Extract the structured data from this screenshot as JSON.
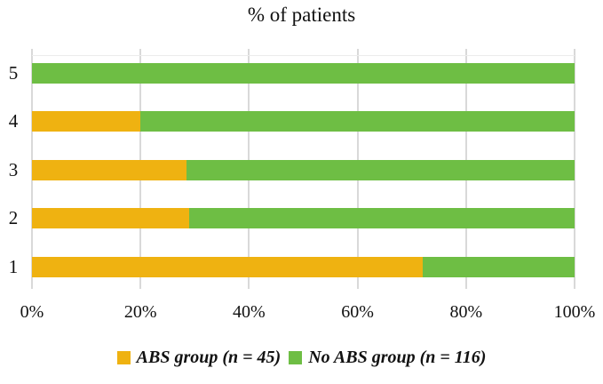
{
  "title": "% of patients",
  "chart_data": {
    "type": "bar",
    "orientation": "horizontal",
    "stacked": true,
    "title": "% of patients",
    "xlabel": "",
    "ylabel": "",
    "categories": [
      "5",
      "4",
      "3",
      "2",
      "1"
    ],
    "series": [
      {
        "name": "ABS group (n = 45)",
        "color": "#EFB211",
        "values": [
          0,
          20,
          28.5,
          29,
          72
        ]
      },
      {
        "name": "No ABS group (n = 116)",
        "color": "#6EBE44",
        "values": [
          100,
          80,
          71.5,
          71,
          28
        ]
      }
    ],
    "x_tick_labels": [
      "0%",
      "20%",
      "40%",
      "60%",
      "80%",
      "100%"
    ],
    "x_tick_values": [
      0,
      20,
      40,
      60,
      80,
      100
    ],
    "xlim": [
      0,
      100
    ],
    "grid": "vertical-major",
    "gridline_color": "#D9D9D9",
    "legend_position": "bottom"
  },
  "legend": {
    "items": [
      {
        "label": "ABS group (n = 45)",
        "color": "#EFB211"
      },
      {
        "label": "No ABS group (n = 116)",
        "color": "#6EBE44"
      }
    ]
  },
  "colors": {
    "background": "#FFFFFF",
    "text": "#111111",
    "gridline": "#D9D9D9"
  }
}
